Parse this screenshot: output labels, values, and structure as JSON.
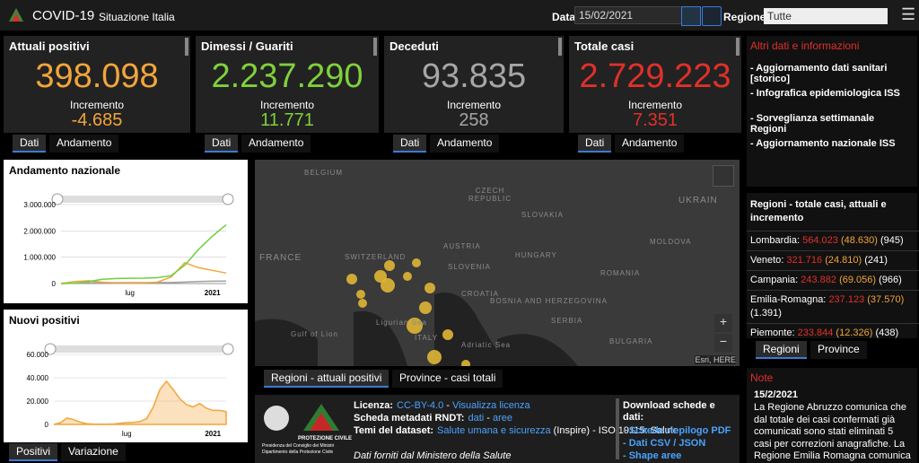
{
  "header": {
    "title": "COVID-19",
    "subtitle": "Situazione Italia",
    "date_label": "Data",
    "date": "15/02/2021",
    "region_label": "Regione",
    "region": "Tutte"
  },
  "kpis": [
    {
      "title": "Attuali positivi",
      "value": "398.098",
      "delta_label": "Incremento",
      "delta": "-4.685",
      "color": "#f2a53b",
      "tabs": [
        "Dati",
        "Andamento"
      ]
    },
    {
      "title": "Dimessi / Guariti",
      "value": "2.237.290",
      "delta_label": "Incremento",
      "delta": "11.771",
      "color": "#7fd13b",
      "tabs": [
        "Dati",
        "Andamento"
      ]
    },
    {
      "title": "Deceduti",
      "value": "93.835",
      "delta_label": "Incremento",
      "delta": "258",
      "color": "#a6a6a6",
      "tabs": [
        "Dati",
        "Andamento"
      ]
    },
    {
      "title": "Totale casi",
      "value": "2.729.223",
      "delta_label": "Incremento",
      "delta": "7.351",
      "color": "#e0302a",
      "tabs": [
        "Dati",
        "Andamento"
      ]
    }
  ],
  "chart_data": [
    {
      "type": "line",
      "title": "Andamento nazionale",
      "categories": [
        null,
        null,
        null,
        null,
        null,
        "lug",
        null,
        null,
        null,
        null,
        null,
        "2021",
        null
      ],
      "ylim": [
        0,
        3000000
      ],
      "yticks": [
        0,
        {
          "value": 1000000,
          "label": "1.000.000"
        },
        {
          "value": 2000000,
          "label": "2.000.000"
        },
        {
          "value": 3000000,
          "label": "3.000.000"
        }
      ],
      "grid": true,
      "series": [
        {
          "color": "#a0a0a0",
          "values": [
            0,
            12000,
            28000,
            33000,
            35000,
            35000,
            35500,
            36000,
            39000,
            55000,
            74000,
            88000,
            93835
          ]
        },
        {
          "color": "#f2a53b",
          "values": [
            0,
            80000,
            105000,
            50000,
            20000,
            13000,
            20000,
            50000,
            250000,
            790000,
            600000,
            500000,
            398098
          ]
        },
        {
          "color": "#6fcf3a",
          "values": [
            0,
            13000,
            75000,
            160000,
            190000,
            200000,
            205000,
            220000,
            300000,
            700000,
            1300000,
            1800000,
            2237290
          ]
        }
      ]
    },
    {
      "type": "area",
      "title": "Nuovi positivi",
      "categories": [
        null,
        null,
        null,
        null,
        null,
        null,
        null,
        null,
        null,
        null,
        null,
        "lug",
        null,
        null,
        null,
        null,
        null,
        null,
        null,
        null,
        null,
        null,
        null,
        null,
        "2021",
        null,
        null
      ],
      "ylim": [
        0,
        60000
      ],
      "yticks": [
        0,
        {
          "value": 20000,
          "label": "20.000"
        },
        {
          "value": 40000,
          "label": "40.000"
        },
        {
          "value": 60000,
          "label": "60.000"
        }
      ],
      "grid": true,
      "series": [
        {
          "color": "#f2a53b",
          "values": [
            0,
            1500,
            5500,
            4000,
            2000,
            500,
            300,
            200,
            250,
            400,
            1000,
            1500,
            1700,
            2500,
            5000,
            15000,
            30000,
            37000,
            30000,
            22000,
            17000,
            15000,
            18000,
            14000,
            12000,
            12000,
            11000
          ]
        }
      ]
    }
  ],
  "chart_tabs": [
    "Positivi",
    "Variazione"
  ],
  "map": {
    "labels": [
      "BELGIUM",
      "CZECH REPUBLIC",
      "SLOVAKIA",
      "UKRAIN",
      "FRANCE",
      "SWITZERLAND",
      "AUSTRIA",
      "HUNGARY",
      "MOLDOVA",
      "SLOVENIA",
      "CROATIA",
      "ROMANIA",
      "BOSNIA AND HERZEGOVINA",
      "SERBIA",
      "Ligurian Sea",
      "ITALY",
      "Gulf of Lion",
      "Adriatic Sea",
      "BULGARIA"
    ],
    "attribution": "Esri, HERE",
    "tabs": [
      "Regioni - attuali positivi",
      "Province - casi totali"
    ]
  },
  "info": {
    "title": "Altri dati e informazioni",
    "items": [
      "- Aggiornamento dati sanitari [storico]",
      "- Infografica epidemiologica ISS",
      "- Sorveglianza settimanale Regioni",
      "- Aggiornamento nazionale ISS"
    ]
  },
  "regions": {
    "title": "Regioni - totale casi, attuali e incremento",
    "rows": [
      {
        "name": "Lombardia:",
        "total": "564.023",
        "delta": "(48.630)",
        "current": "(945)"
      },
      {
        "name": "Veneto:",
        "total": "321.716",
        "delta": "(24.810)",
        "current": "(241)"
      },
      {
        "name": "Campania:",
        "total": "243.882",
        "delta": "(69.056)",
        "current": "(966)"
      },
      {
        "name": "Emilia-Romagna:",
        "total": "237.123",
        "delta": "(37.570)",
        "current": "(1.391)"
      },
      {
        "name": "Piemonte:",
        "total": "233.844",
        "delta": "(12.326)",
        "current": "(438)"
      }
    ],
    "tabs": [
      "Regioni",
      "Province"
    ]
  },
  "note": {
    "title": "Note",
    "date": "15/2/2021",
    "text": "La Regione Abruzzo comunica che dal totale dei casi confermati già comunicati sono stati eliminati 5 casi per correzioni anagrafiche. La Regione Emilia Romagna comunica"
  },
  "footer": {
    "logo": [
      "PROTEZIONE CIVILE",
      "Presidenza del Consiglio dei Ministri",
      "Dipartimento della Protezione Civile"
    ],
    "license_label": "Licenza:",
    "license": "CC-BY-4.0",
    "sep": " - ",
    "license_link": "Visualizza licenza",
    "metadata_label": "Scheda metadati RNDT:",
    "metadata_links": [
      "dati",
      "aree"
    ],
    "themes_label": "Temi del dataset:",
    "themes_link": "Salute umana e sicurezza",
    "themes_rest": " (Inspire) - ISO 19115: Salute",
    "source": "Dati forniti dal Ministero della Salute",
    "download_title": "Download schede e dati:",
    "downloads": [
      "- Schede riepilogo PDF",
      "- Dati CSV / JSON",
      "- Shape aree"
    ]
  }
}
